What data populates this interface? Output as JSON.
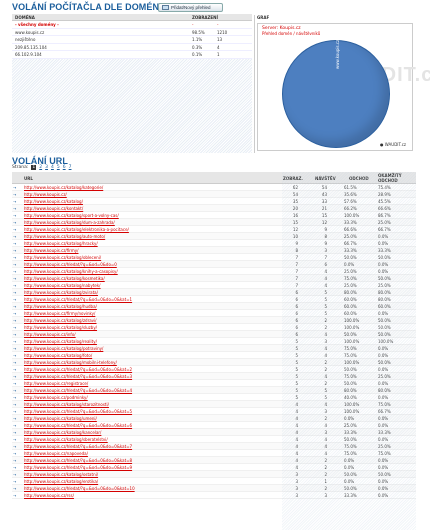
{
  "section1": {
    "title": "VOLÁNÍ POČÍTAČLA DLE DOMÉNY",
    "button_label": "Přidat/Nový přehled",
    "columns": [
      "DOMÉNA",
      "ZOBRAZENÍ"
    ],
    "rows": [
      {
        "domain": "- všechny domény -",
        "pct": "-",
        "count": "-",
        "selected": true
      },
      {
        "domain": "www.koupis.cz",
        "pct": "98.5%",
        "count": "1210",
        "selected": false
      },
      {
        "domain": "nezjištěno",
        "pct": "1.1%",
        "count": "13",
        "selected": false
      },
      {
        "domain": "209.85.135.104",
        "pct": "0.3%",
        "count": "4",
        "selected": false
      },
      {
        "domain": "66.102.9.104",
        "pct": "0.1%",
        "count": "1",
        "selected": false
      }
    ]
  },
  "graph": {
    "label": "GRAF",
    "server": "Server: Koupis.cz",
    "subtitle": "Přehled domén / návštěvníků",
    "watermark": "WAUDIT.cz",
    "pie_label": "www.koupis.cz",
    "footer": "● WAUDIT.cz",
    "colors": {
      "pie": "#4d7fc0"
    }
  },
  "section2": {
    "title": "VOLÁNÍ URL",
    "pager_label": "Strana:",
    "pages": [
      "1",
      "2",
      "3",
      "4",
      "5",
      "6",
      "7"
    ],
    "columns": {
      "url": "URL",
      "zobraz": "ZOBRAZ.",
      "navstev": "NÁVŠTĚV",
      "odchod": "ODCHOD",
      "okamzity": "OKAMŽITÝ ODCHOD"
    },
    "rows": [
      {
        "url": "http://www.koupis.cz/katalog/kategorie/",
        "a": "62",
        "b": "54",
        "c": "61.5%",
        "d": "75.4%"
      },
      {
        "url": "http://www.koupis.cz/",
        "a": "54",
        "a2": "",
        "b": "43",
        "c": "35.6%",
        "d": "28.9%"
      },
      {
        "url": "http://www.koupis.cz/katalog/",
        "a": "35",
        "b": "33",
        "c": "57.6%",
        "d": "45.5%"
      },
      {
        "url": "http://www.koupis.cz/kontakt/",
        "a": "20",
        "b": "21",
        "c": "66.2%",
        "d": "66.6%"
      },
      {
        "url": "http://www.koupis.cz/katalog/sport-a-volny-cas/",
        "a": "16",
        "b": "15",
        "c": "100.0%",
        "d": "86.7%"
      },
      {
        "url": "http://www.koupis.cz/katalog/dum-a-zahrada/",
        "a": "15",
        "b": "12",
        "c": "33.3%",
        "d": "25.0%"
      },
      {
        "url": "http://www.koupis.cz/katalog/elektronika-a-pocitace/",
        "a": "12",
        "b": "9",
        "c": "66.6%",
        "d": "66.7%"
      },
      {
        "url": "http://www.koupis.cz/katalog/auto-moto/",
        "a": "10",
        "b": "8",
        "c": "25.0%",
        "d": "0.0%"
      },
      {
        "url": "http://www.koupis.cz/katalog/hracky/",
        "a": "9",
        "b": "9",
        "c": "66.7%",
        "d": "0.0%"
      },
      {
        "url": "http://www.koupis.cz/firmy/",
        "a": "8",
        "b": "3",
        "c": "33.3%",
        "d": "33.3%"
      },
      {
        "url": "http://www.koupis.cz/katalog/obleceni/",
        "a": "7",
        "b": "7",
        "c": "50.0%",
        "d": "50.0%"
      },
      {
        "url": "http://www.koupis.cz/hledat/?q=&od=0&do=0",
        "a": "7",
        "b": "6",
        "c": "0.0%",
        "d": "0.0%"
      },
      {
        "url": "http://www.koupis.cz/katalog/knihy-a-casopisy/",
        "a": "7",
        "b": "4",
        "c": "25.0%",
        "d": "0.0%"
      },
      {
        "url": "http://www.koupis.cz/katalog/kosmetika/",
        "a": "7",
        "b": "4",
        "c": "75.0%",
        "d": "50.0%"
      },
      {
        "url": "http://www.koupis.cz/katalog/nabytek/",
        "a": "7",
        "b": "4",
        "c": "25.0%",
        "d": "25.0%"
      },
      {
        "url": "http://www.koupis.cz/katalog/zvirata/",
        "a": "6",
        "b": "5",
        "c": "80.0%",
        "d": "80.0%"
      },
      {
        "url": "http://www.koupis.cz/hledat/?q=&od=0&do=0&kat=1",
        "a": "6",
        "b": "5",
        "c": "60.0%",
        "d": "80.0%"
      },
      {
        "url": "http://www.koupis.cz/katalog/hudba/",
        "a": "6",
        "b": "5",
        "c": "60.0%",
        "d": "60.0%"
      },
      {
        "url": "http://www.koupis.cz/firmy/novinky/",
        "a": "6",
        "b": "5",
        "c": "60.0%",
        "d": "0.0%"
      },
      {
        "url": "http://www.koupis.cz/katalog/zdravi/",
        "a": "6",
        "b": "2",
        "c": "100.0%",
        "d": "50.0%"
      },
      {
        "url": "http://www.koupis.cz/katalog/sluzby/",
        "a": "6",
        "b": "2",
        "c": "100.0%",
        "d": "50.0%"
      },
      {
        "url": "http://www.koupis.cz/info/",
        "a": "6",
        "b": "4",
        "c": "50.0%",
        "d": "50.0%"
      },
      {
        "url": "http://www.koupis.cz/katalog/reality/",
        "a": "5",
        "b": "3",
        "c": "100.0%",
        "d": "100.0%"
      },
      {
        "url": "http://www.koupis.cz/katalog/potraviny/",
        "a": "5",
        "b": "4",
        "c": "75.0%",
        "d": "0.0%"
      },
      {
        "url": "http://www.koupis.cz/katalog/foto/",
        "a": "5",
        "b": "4",
        "c": "75.0%",
        "d": "0.0%"
      },
      {
        "url": "http://www.koupis.cz/katalog/mobilni-telefony/",
        "a": "5",
        "b": "2",
        "c": "100.0%",
        "d": "50.0%"
      },
      {
        "url": "http://www.koupis.cz/hledat/?q=&od=0&do=0&kat=2",
        "a": "5",
        "b": "2",
        "c": "50.0%",
        "d": "0.0%"
      },
      {
        "url": "http://www.koupis.cz/hledat/?q=&od=0&do=0&kat=3",
        "a": "5",
        "b": "4",
        "c": "75.0%",
        "d": "25.0%"
      },
      {
        "url": "http://www.koupis.cz/registrace/",
        "a": "5",
        "b": "2",
        "c": "50.0%",
        "d": "0.0%"
      },
      {
        "url": "http://www.koupis.cz/hledat/?q=&od=0&do=0&kat=4",
        "a": "5",
        "b": "5",
        "c": "80.0%",
        "d": "80.0%"
      },
      {
        "url": "http://www.koupis.cz/podminky/",
        "a": "5",
        "b": "5",
        "c": "40.0%",
        "d": "0.0%"
      },
      {
        "url": "http://www.koupis.cz/katalog/starozitnosti/",
        "a": "4",
        "b": "4",
        "c": "100.0%",
        "d": "75.0%"
      },
      {
        "url": "http://www.koupis.cz/hledat/?q=&od=0&do=0&kat=5",
        "a": "4",
        "b": "3",
        "c": "100.0%",
        "d": "66.7%"
      },
      {
        "url": "http://www.koupis.cz/katalog/umeni/",
        "a": "4",
        "b": "2",
        "c": "0.0%",
        "d": "0.0%"
      },
      {
        "url": "http://www.koupis.cz/hledat/?q=&od=0&do=0&kat=6",
        "a": "4",
        "b": "4",
        "c": "25.0%",
        "d": "0.0%"
      },
      {
        "url": "http://www.koupis.cz/katalog/kancelar/",
        "a": "4",
        "b": "3",
        "c": "33.3%",
        "d": "33.3%"
      },
      {
        "url": "http://www.koupis.cz/katalog/sberatelstvi/",
        "a": "4",
        "b": "4",
        "c": "50.0%",
        "d": "0.0%"
      },
      {
        "url": "http://www.koupis.cz/hledat/?q=&od=0&do=0&kat=7",
        "a": "4",
        "b": "4",
        "c": "75.0%",
        "d": "25.0%"
      },
      {
        "url": "http://www.koupis.cz/napoveda/",
        "a": "4",
        "b": "4",
        "c": "75.0%",
        "d": "75.0%"
      },
      {
        "url": "http://www.koupis.cz/hledat/?q=&od=0&do=0&kat=8",
        "a": "4",
        "b": "2",
        "c": "0.0%",
        "d": "0.0%"
      },
      {
        "url": "http://www.koupis.cz/hledat/?q=&od=0&do=0&kat=9",
        "a": "4",
        "b": "2",
        "c": "0.0%",
        "d": "0.0%"
      },
      {
        "url": "http://www.koupis.cz/katalog/ostatni/",
        "a": "3",
        "b": "2",
        "c": "50.0%",
        "d": "50.0%"
      },
      {
        "url": "http://www.koupis.cz/katalog/erotika/",
        "a": "3",
        "b": "1",
        "c": "0.0%",
        "d": "0.0%"
      },
      {
        "url": "http://www.koupis.cz/hledat/?q=&od=0&do=0&kat=10",
        "a": "3",
        "b": "2",
        "c": "50.0%",
        "d": "0.0%"
      },
      {
        "url": "http://www.koupis.cz/rss/",
        "a": "3",
        "b": "3",
        "c": "33.3%",
        "d": "0.0%"
      }
    ]
  }
}
